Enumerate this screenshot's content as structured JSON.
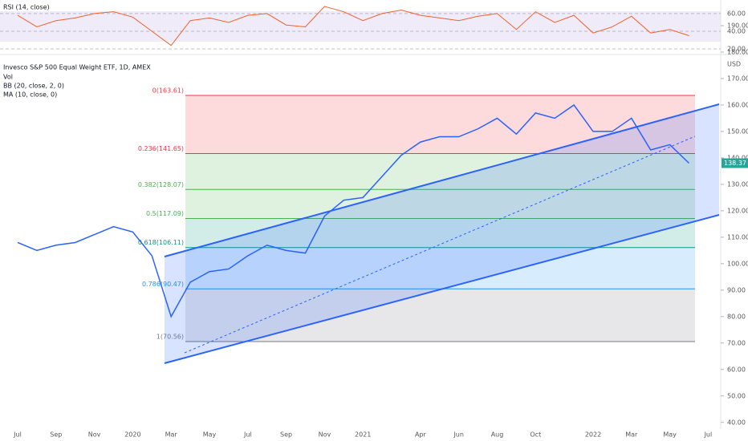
{
  "chart_data": [
    {
      "type": "line",
      "title": "RSI (14, close)",
      "color": "#f0612d",
      "ylim": [
        13.7,
        75.3
      ],
      "yticks": [
        {
          "value": 20,
          "label": "20.00"
        },
        {
          "value": 40,
          "label": "40.00"
        },
        {
          "value": 60,
          "label": "60.00"
        }
      ],
      "values": [
        58,
        45,
        52,
        55,
        60,
        62,
        56,
        40,
        24,
        52,
        55,
        50,
        58,
        60,
        47,
        45,
        68,
        62,
        52,
        60,
        64,
        58,
        55,
        52,
        57,
        60,
        42,
        62,
        50,
        58,
        38,
        45,
        57,
        38,
        42,
        35,
        null
      ]
    },
    {
      "type": "line",
      "title": "Invesco S&P 500 Equal Weight ETF, 1D, AMEX",
      "legend": [
        "Vol",
        "BB (20, close, 2, 0)",
        "MA (10, close, 0)"
      ],
      "unit": "USD",
      "color": "#2962ff",
      "categories": [
        "Jul",
        null,
        "Sep",
        null,
        "Nov",
        null,
        "2020",
        null,
        "Mar",
        null,
        "May",
        null,
        "Jul",
        null,
        "Sep",
        null,
        "Nov",
        null,
        "2021",
        null,
        null,
        "Apr",
        null,
        "Jun",
        null,
        "Aug",
        null,
        "Oct",
        null,
        null,
        "2022",
        null,
        "Mar",
        null,
        "May",
        null,
        "Jul"
      ],
      "values": [
        108,
        105,
        107,
        108,
        111,
        114,
        112,
        103,
        80,
        93,
        97,
        98,
        103,
        107,
        105,
        104,
        118,
        124,
        125,
        133,
        141,
        146,
        148,
        148,
        151,
        155,
        149,
        157,
        155,
        160,
        150,
        150,
        155,
        143,
        145,
        138,
        null
      ],
      "last_label": "138.37",
      "ylim": [
        37.5,
        199.7
      ],
      "yticks": [
        {
          "value": 40,
          "label": "40.00"
        },
        {
          "value": 50,
          "label": "50.00"
        },
        {
          "value": 60,
          "label": "60.00"
        },
        {
          "value": 70,
          "label": "70.00"
        },
        {
          "value": 80,
          "label": "80.00"
        },
        {
          "value": 90,
          "label": "90.00"
        },
        {
          "value": 100,
          "label": "100.00"
        },
        {
          "value": 110,
          "label": "110.00"
        },
        {
          "value": 120,
          "label": "120.00"
        },
        {
          "value": 130,
          "label": "130.00"
        },
        {
          "value": 140,
          "label": "140.00"
        },
        {
          "value": 150,
          "label": "150.00"
        },
        {
          "value": 160,
          "label": "160.00"
        },
        {
          "value": 170,
          "label": "170.00"
        },
        {
          "value": 180,
          "label": "180.00"
        },
        {
          "value": 190,
          "label": "190.00"
        }
      ],
      "fib": [
        {
          "value": 163.61,
          "label": "0(163.61)",
          "color": "#f23645"
        },
        {
          "value": 141.65,
          "label": "0.236(141.65)",
          "color": "#f23645"
        },
        {
          "value": 128.07,
          "label": "0.382(128.07)",
          "color": "#4caf50"
        },
        {
          "value": 117.09,
          "label": "0.5(117.09)",
          "color": "#4caf50"
        },
        {
          "value": 106.11,
          "label": "0.618(106.11)",
          "color": "#089981"
        },
        {
          "value": 90.47,
          "label": "0.786(90.47)",
          "color": "#2196f3"
        },
        {
          "value": 70.56,
          "label": "1(70.56)",
          "color": "#787b86"
        }
      ]
    }
  ]
}
